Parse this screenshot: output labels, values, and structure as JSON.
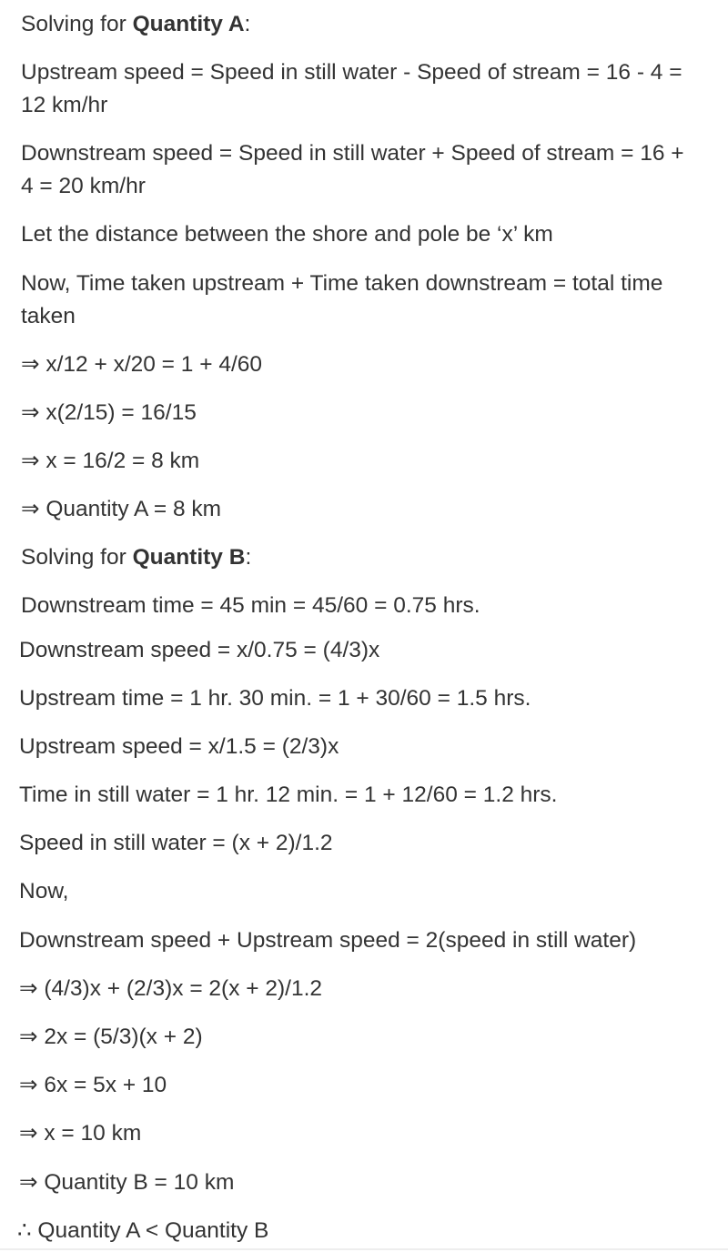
{
  "quantity_a": {
    "heading_prefix": "Solving for ",
    "heading_bold": "Quantity A",
    "heading_suffix": ":",
    "upstream_line1": "Upstream speed = Speed in still water - Speed of stream = 16 - 4 =",
    "upstream_line2": "12 km/hr",
    "downstream_line1": "Downstream speed = Speed in still water + Speed of stream = 16 +",
    "downstream_line2": "4 = 20 km/hr",
    "let_distance": "Let the distance between the shore and pole be ‘x’ km",
    "now_line1": "Now, Time taken upstream + Time taken downstream = total time",
    "now_line2": "taken",
    "step1": "⇒ x/12 + x/20 = 1 + 4/60",
    "step2": "⇒ x(2/15) = 16/15",
    "step3": "⇒ x = 16/2 = 8 km",
    "result": "⇒ Quantity A = 8 km"
  },
  "quantity_b": {
    "heading_prefix": "Solving for ",
    "heading_bold": "Quantity B",
    "heading_suffix": ":",
    "downstream_time": "Downstream time = 45 min = 45/60 = 0.75 hrs.",
    "downstream_speed": "Downstream speed = x/0.75 = (4/3)x",
    "upstream_time": "Upstream time = 1 hr. 30 min. = 1 + 30/60 = 1.5 hrs.",
    "upstream_speed": "Upstream speed = x/1.5 = (2/3)x",
    "still_time": "Time in still water = 1 hr. 12 min. = 1 + 12/60 = 1.2 hrs.",
    "still_speed": "Speed in still water = (x + 2)/1.2",
    "now": "Now,",
    "relation": "Downstream speed + Upstream speed = 2(speed in still water)",
    "step1": "⇒ (4/3)x + (2/3)x = 2(x + 2)/1.2",
    "step2": "⇒ 2x = (5/3)(x + 2)",
    "step3": "⇒ 6x = 5x + 10",
    "step4": "⇒ x = 10 km",
    "result": "⇒ Quantity B = 10 km"
  },
  "conclusion": "∴ Quantity A < Quantity B"
}
